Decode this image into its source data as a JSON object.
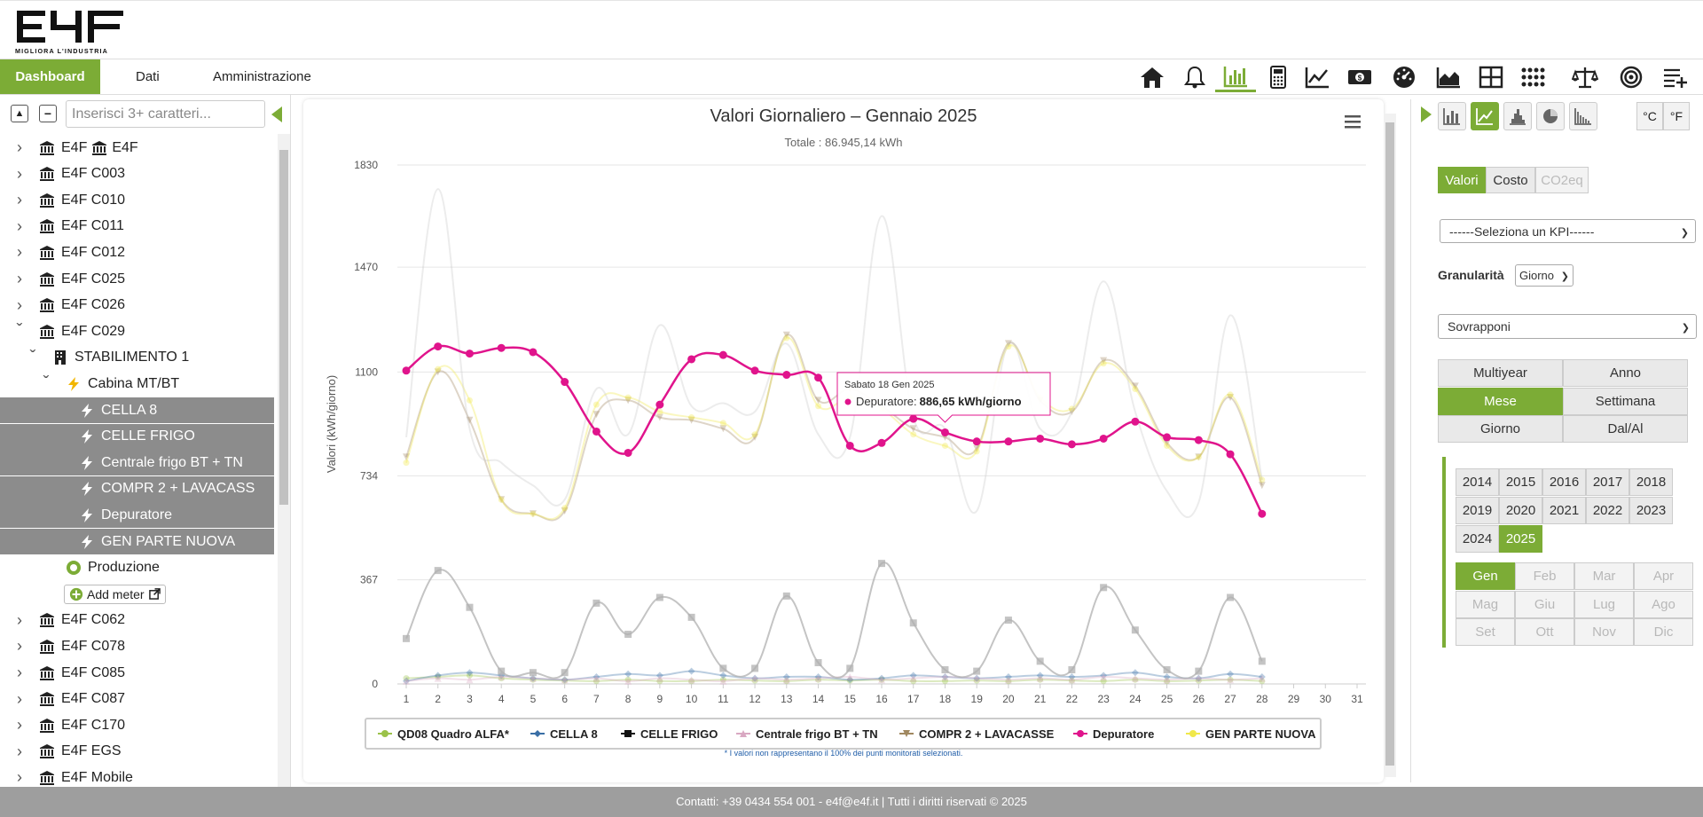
{
  "header": {
    "logo_text": "E4F",
    "logo_tagline": "MIGLIORA L'INDUSTRIA"
  },
  "nav": {
    "tabs": [
      {
        "label": "Dashboard",
        "active": true
      },
      {
        "label": "Dati",
        "active": false
      },
      {
        "label": "Amministrazione",
        "active": false
      }
    ],
    "icons": [
      "home-icon",
      "bell-icon",
      "bar-chart-icon",
      "calculator-icon",
      "line-chart-icon",
      "money-icon",
      "gauge-icon",
      "area-chart-icon",
      "grid-icon",
      "dots-grid-icon",
      "scale-icon",
      "target-icon",
      "add-list-icon"
    ],
    "active_icon": "bar-chart-icon"
  },
  "sidebar": {
    "search_placeholder": "Inserisci 3+ caratteri...",
    "tree": [
      {
        "label": "E4F E4F",
        "level": 0,
        "icon": "bank-icon",
        "chevron": "right",
        "selected": false,
        "double_icon": true
      },
      {
        "label": "E4F C003",
        "level": 0,
        "icon": "bank-icon",
        "chevron": "right",
        "selected": false
      },
      {
        "label": "E4F C010",
        "level": 0,
        "icon": "bank-icon",
        "chevron": "right",
        "selected": false
      },
      {
        "label": "E4F C011",
        "level": 0,
        "icon": "bank-icon",
        "chevron": "right",
        "selected": false
      },
      {
        "label": "E4F C012",
        "level": 0,
        "icon": "bank-icon",
        "chevron": "right",
        "selected": false
      },
      {
        "label": "E4F C025",
        "level": 0,
        "icon": "bank-icon",
        "chevron": "right",
        "selected": false
      },
      {
        "label": "E4F C026",
        "level": 0,
        "icon": "bank-icon",
        "chevron": "right",
        "selected": false
      },
      {
        "label": "E4F C029",
        "level": 0,
        "icon": "bank-icon",
        "chevron": "down",
        "selected": false
      },
      {
        "label": "STABILIMENTO 1",
        "level": 1,
        "icon": "building-icon",
        "chevron": "down",
        "selected": false
      },
      {
        "label": "Cabina MT/BT",
        "level": 2,
        "icon": "bolt-icon",
        "chevron": "down",
        "selected": false
      },
      {
        "label": "CELLA 8",
        "level": 3,
        "icon": "bolt-icon",
        "chevron": "",
        "selected": true
      },
      {
        "label": "CELLE FRIGO",
        "level": 3,
        "icon": "bolt-icon",
        "chevron": "",
        "selected": true
      },
      {
        "label": "Centrale frigo BT + TN",
        "level": 3,
        "icon": "bolt-icon",
        "chevron": "",
        "selected": true
      },
      {
        "label": "COMPR 2 + LAVACASS",
        "level": 3,
        "icon": "bolt-icon",
        "chevron": "",
        "selected": true
      },
      {
        "label": "Depuratore",
        "level": 3,
        "icon": "bolt-icon",
        "chevron": "",
        "selected": true
      },
      {
        "label": "GEN PARTE NUOVA",
        "level": 3,
        "icon": "bolt-icon",
        "chevron": "",
        "selected": true
      },
      {
        "label": "Produzione",
        "level": 2,
        "icon": "circle-icon",
        "chevron": "",
        "selected": false
      },
      {
        "label": "Add meter",
        "level": 2,
        "icon": "add-icon",
        "chevron": "",
        "selected": false,
        "button": true
      },
      {
        "label": "E4F C062",
        "level": 0,
        "icon": "bank-icon",
        "chevron": "right",
        "selected": false
      },
      {
        "label": "E4F C078",
        "level": 0,
        "icon": "bank-icon",
        "chevron": "right",
        "selected": false
      },
      {
        "label": "E4F C085",
        "level": 0,
        "icon": "bank-icon",
        "chevron": "right",
        "selected": false
      },
      {
        "label": "E4F C087",
        "level": 0,
        "icon": "bank-icon",
        "chevron": "right",
        "selected": false
      },
      {
        "label": "E4F C170",
        "level": 0,
        "icon": "bank-icon",
        "chevron": "right",
        "selected": false
      },
      {
        "label": "E4F EGS",
        "level": 0,
        "icon": "bank-icon",
        "chevron": "right",
        "selected": false
      },
      {
        "label": "E4F Mobile",
        "level": 0,
        "icon": "bank-icon",
        "chevron": "right",
        "selected": false
      }
    ]
  },
  "chart_data": {
    "type": "line",
    "title": "Valori Giornaliero – Gennaio 2025",
    "subtitle": "Totale : 86.945,14 kWh",
    "ylabel": "Valori (kWh/giorno)",
    "xlabel": "",
    "ylim": [
      0,
      1830
    ],
    "yticks": [
      "0",
      "367",
      "734",
      "1100",
      "1470",
      "1830"
    ],
    "ytick_values": [
      0,
      367,
      734,
      1100,
      1470,
      1830
    ],
    "x": [
      1,
      2,
      3,
      4,
      5,
      6,
      7,
      8,
      9,
      10,
      11,
      12,
      13,
      14,
      15,
      16,
      17,
      18,
      19,
      20,
      21,
      22,
      23,
      24,
      25,
      26,
      27,
      28,
      29,
      30,
      31
    ],
    "series": [
      {
        "name": "QD08 Quadro ALFA*",
        "color": "#9bc24a",
        "faded": true,
        "marker": "circle",
        "values": [
          20,
          25,
          30,
          20,
          15,
          12,
          10,
          15,
          10,
          10,
          15,
          12,
          10,
          15,
          12,
          15,
          10,
          10,
          12,
          10,
          15,
          12,
          10,
          15,
          10,
          12,
          15,
          10,
          null,
          null,
          null
        ]
      },
      {
        "name": "CELLA 8",
        "color": "#3a6fa6",
        "faded": true,
        "marker": "diamond",
        "values": [
          10,
          30,
          40,
          30,
          20,
          15,
          25,
          35,
          30,
          45,
          30,
          20,
          25,
          25,
          15,
          20,
          30,
          25,
          20,
          25,
          30,
          25,
          30,
          40,
          25,
          20,
          35,
          25,
          null,
          null,
          null
        ]
      },
      {
        "name": "CELLE FRIGO",
        "color": "#111111",
        "faded": false,
        "marker": "square",
        "display_color": "#b0b0b0",
        "values": [
          160,
          400,
          270,
          45,
          40,
          40,
          285,
          175,
          305,
          235,
          55,
          55,
          310,
          75,
          55,
          425,
          215,
          50,
          45,
          225,
          80,
          50,
          340,
          190,
          50,
          45,
          305,
          80,
          null,
          null,
          null
        ]
      },
      {
        "name": "Centrale frigo BT + TN",
        "color": "#d9a8c2",
        "faded": true,
        "marker": "triangle",
        "values": [
          10,
          20,
          15,
          25,
          20,
          15,
          20,
          10,
          20,
          15,
          10,
          20,
          15,
          20,
          25,
          15,
          20,
          25,
          20,
          15,
          20,
          15,
          25,
          20,
          15,
          20,
          15,
          20,
          null,
          null,
          null
        ]
      },
      {
        "name": "COMPR 2 + LAVACASSE",
        "color": "#a08860",
        "faded": true,
        "marker": "triangle-down",
        "values": [
          800,
          1100,
          930,
          650,
          600,
          610,
          950,
          1000,
          940,
          930,
          900,
          870,
          1230,
          1000,
          1040,
          980,
          900,
          870,
          830,
          1200,
          1000,
          960,
          1140,
          1050,
          850,
          800,
          1010,
          700,
          null,
          null,
          null
        ]
      },
      {
        "name": "Depuratore",
        "color": "#e0148c",
        "faded": false,
        "marker": "circle",
        "values": [
          1105,
          1190,
          1165,
          1185,
          1170,
          1065,
          890,
          815,
          985,
          1145,
          1160,
          1105,
          1090,
          1080,
          840,
          850,
          935,
          887,
          855,
          855,
          865,
          845,
          865,
          925,
          870,
          860,
          810,
          600,
          null,
          null,
          null
        ]
      },
      {
        "name": "GEN PARTE NUOVA",
        "color": "#f0e84a",
        "faded": true,
        "marker": "circle",
        "values": [
          780,
          1110,
          1000,
          650,
          600,
          620,
          985,
          1010,
          960,
          940,
          920,
          880,
          1220,
          980,
          1010,
          970,
          880,
          840,
          820,
          1190,
          1010,
          970,
          1130,
          1040,
          840,
          800,
          1020,
          720,
          null,
          null,
          null
        ]
      },
      {
        "name": "_ghost_top",
        "color": "#c8c8c8",
        "faded": true,
        "marker": "none",
        "legend": false,
        "values": [
          870,
          1745,
          900,
          780,
          700,
          650,
          1040,
          880,
          1265,
          980,
          990,
          960,
          1200,
          880,
          870,
          1650,
          940,
          900,
          610,
          1200,
          900,
          960,
          1420,
          960,
          680,
          640,
          1300,
          720,
          null,
          null,
          null
        ]
      }
    ],
    "legend_position": "bottom",
    "footnote": "* I valori non rappresentano il 100% dei punti monitorati selezionati.",
    "tooltip": {
      "date": "Sabato 18 Gen 2025",
      "series": "Depuratore",
      "value": "886,65 kWh/giorno"
    }
  },
  "right_panel": {
    "unit_buttons": [
      "°C",
      "°F"
    ],
    "chart_type_icons": [
      "bar-chart-icon",
      "line-chart-icon",
      "column-chart-icon",
      "pie-chart-icon",
      "histogram-icon"
    ],
    "active_chart_type": "line-chart-icon",
    "value_tabs": [
      {
        "label": "Valori",
        "active": true,
        "disabled": false
      },
      {
        "label": "Costo",
        "active": false,
        "disabled": false
      },
      {
        "label": "CO2eq",
        "active": false,
        "disabled": true
      }
    ],
    "kpi_select": "------Seleziona un KPI------",
    "granularity_label": "Granularità",
    "granularity_value": "Giorno",
    "overlay_select": "Sovrapponi",
    "period_buttons": [
      {
        "label": "Multiyear",
        "active": false
      },
      {
        "label": "Anno",
        "active": false
      },
      {
        "label": "Mese",
        "active": true
      },
      {
        "label": "Settimana",
        "active": false
      },
      {
        "label": "Giorno",
        "active": false
      },
      {
        "label": "Dal/Al",
        "active": false
      }
    ],
    "years": [
      {
        "label": "2014",
        "active": false
      },
      {
        "label": "2015",
        "active": false
      },
      {
        "label": "2016",
        "active": false
      },
      {
        "label": "2017",
        "active": false
      },
      {
        "label": "2018",
        "active": false
      },
      {
        "label": "2019",
        "active": false
      },
      {
        "label": "2020",
        "active": false
      },
      {
        "label": "2021",
        "active": false
      },
      {
        "label": "2022",
        "active": false
      },
      {
        "label": "2023",
        "active": false
      },
      {
        "label": "2024",
        "active": false
      },
      {
        "label": "2025",
        "active": true
      }
    ],
    "months": [
      {
        "label": "Gen",
        "active": true,
        "disabled": false
      },
      {
        "label": "Feb",
        "active": false,
        "disabled": true
      },
      {
        "label": "Mar",
        "active": false,
        "disabled": true
      },
      {
        "label": "Apr",
        "active": false,
        "disabled": true
      },
      {
        "label": "Mag",
        "active": false,
        "disabled": true
      },
      {
        "label": "Giu",
        "active": false,
        "disabled": true
      },
      {
        "label": "Lug",
        "active": false,
        "disabled": true
      },
      {
        "label": "Ago",
        "active": false,
        "disabled": true
      },
      {
        "label": "Set",
        "active": false,
        "disabled": true
      },
      {
        "label": "Ott",
        "active": false,
        "disabled": true
      },
      {
        "label": "Nov",
        "active": false,
        "disabled": true
      },
      {
        "label": "Dic",
        "active": false,
        "disabled": true
      }
    ]
  },
  "footer": {
    "text": "Contatti: +39 0434 554 001 - e4f@e4f.it | Tutti i diritti riservati © 2025"
  },
  "colors": {
    "accent": "#7cac36",
    "highlight_series": "#e0148c",
    "selected_tree_bg": "#8c8c8c",
    "footer_bg": "#9e9e9e"
  }
}
